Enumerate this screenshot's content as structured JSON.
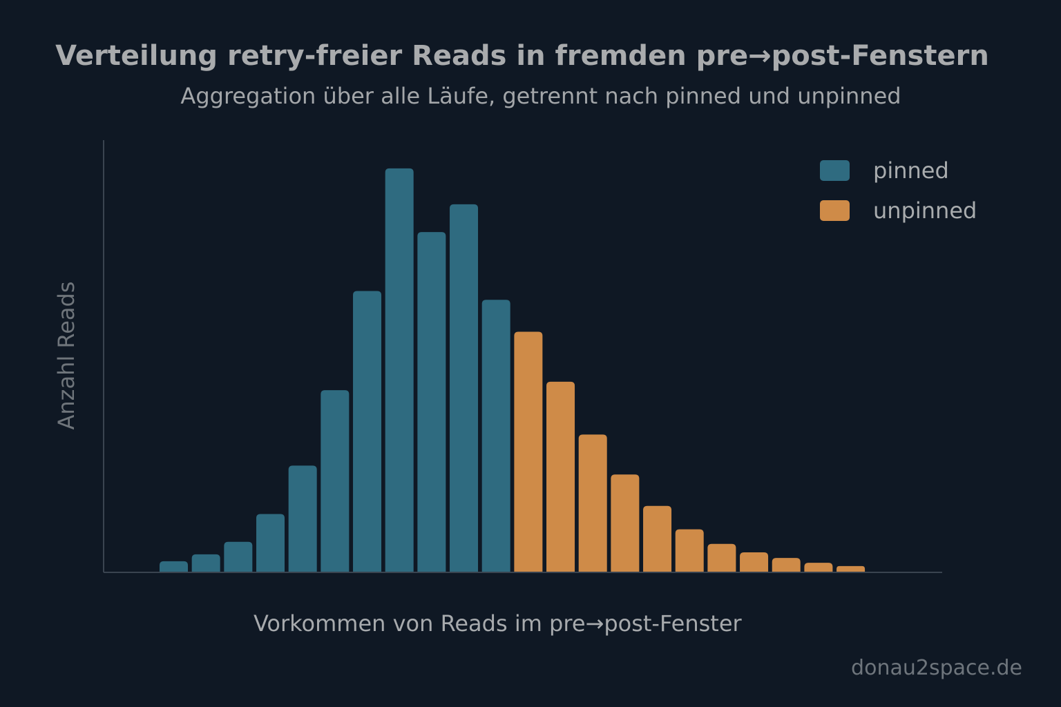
{
  "chart_data": {
    "type": "bar",
    "title": "Verteilung retry-freier Reads in fremden pre→post-Fenstern",
    "subtitle": "Aggregation über alle Läufe, getrennt nach pinned und unpinned",
    "xlabel": "Vorkommen von Reads im pre→post-Fenster",
    "ylabel": "Anzahl Reads",
    "values_note": "relative heights, max = 100 (no tick labels shown)",
    "series": [
      {
        "name": "pinned",
        "color": "#2f6b80",
        "values": [
          2.6,
          4.3,
          7.4,
          14.3,
          26.3,
          45.0,
          69.6,
          100.0,
          84.2,
          91.1,
          67.4
        ]
      },
      {
        "name": "unpinned",
        "color": "#cf8b48",
        "values": [
          59.5,
          47.1,
          34.0,
          24.1,
          16.3,
          10.5,
          6.9,
          4.8,
          3.4,
          2.2,
          1.4
        ]
      }
    ],
    "ylim": [
      0,
      107
    ],
    "grid": false,
    "legend": "top-right"
  },
  "watermark": "donau2space.de"
}
